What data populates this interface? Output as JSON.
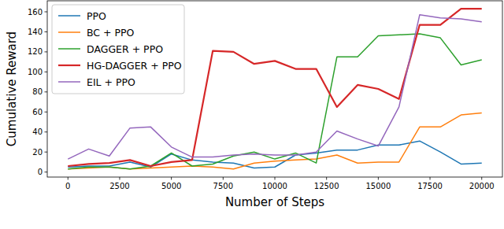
{
  "chart_data": {
    "type": "line",
    "x_label": "Number of Steps",
    "y_label": "Cumulative Reward",
    "x": [
      0,
      1000,
      2000,
      3000,
      4000,
      5000,
      6000,
      7000,
      8000,
      9000,
      10000,
      11000,
      12000,
      13000,
      14000,
      15000,
      16000,
      17000,
      18000,
      19000,
      20000
    ],
    "xlim": [
      -1000,
      21000
    ],
    "xticks": [
      0,
      2500,
      5000,
      7500,
      10000,
      12500,
      15000,
      17500,
      20000
    ],
    "ylim": [
      -5,
      171
    ],
    "yticks": [
      0,
      20,
      40,
      60,
      80,
      100,
      120,
      140,
      160
    ],
    "legend": "upper left",
    "grid": false,
    "series": [
      {
        "name": "PPO",
        "color": "#1f77b4",
        "values": [
          5,
          6,
          6,
          10,
          5,
          18,
          12,
          10,
          9,
          4,
          5,
          17,
          19,
          22,
          22,
          27,
          27,
          31,
          20,
          8,
          9
        ]
      },
      {
        "name": "BC + PPO",
        "color": "#ff7f0e",
        "values": [
          3,
          4,
          5,
          3,
          4,
          5,
          6,
          5,
          3,
          9,
          11,
          12,
          13,
          17,
          9,
          10,
          10,
          45,
          45,
          57,
          59
        ]
      },
      {
        "name": "DAGGER + PPO",
        "color": "#2ca02c",
        "values": [
          3,
          5,
          5,
          3,
          6,
          19,
          6,
          8,
          16,
          20,
          13,
          19,
          9,
          115,
          115,
          136,
          137,
          138,
          134,
          107,
          112
        ]
      },
      {
        "name": "HG-DAGGER + PPO",
        "color": "#d62728",
        "values": [
          6,
          8,
          9,
          12,
          6,
          10,
          12,
          121,
          120,
          108,
          111,
          103,
          103,
          65,
          87,
          83,
          73,
          147,
          147,
          163,
          163
        ]
      },
      {
        "name": "EIL + PPO",
        "color": "#9467bd",
        "values": [
          13,
          23,
          16,
          44,
          45,
          25,
          15,
          15,
          17,
          18,
          17,
          17,
          20,
          41,
          33,
          26,
          65,
          157,
          154,
          153,
          150
        ]
      }
    ]
  }
}
